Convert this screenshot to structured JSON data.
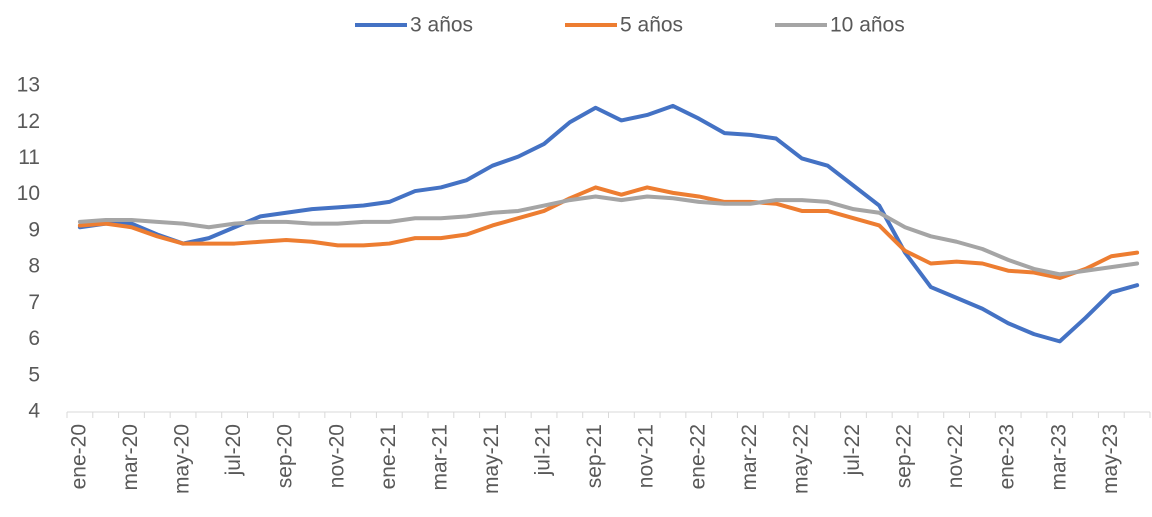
{
  "chart_data": {
    "type": "line",
    "categories": [
      "ene-20",
      null,
      "mar-20",
      null,
      "may-20",
      null,
      "jul-20",
      null,
      "sep-20",
      null,
      "nov-20",
      null,
      "ene-21",
      null,
      "mar-21",
      null,
      "may-21",
      null,
      "jul-21",
      null,
      "sep-21",
      null,
      "nov-21",
      null,
      "ene-22",
      null,
      "mar-22",
      null,
      "may-22",
      null,
      "jul-22",
      null,
      "sep-22",
      null,
      "nov-22",
      null,
      "ene-23",
      null,
      "mar-23",
      null,
      "may-23",
      null
    ],
    "series": [
      {
        "name": "3 años",
        "color": "#4472c4",
        "values": [
          9.1,
          9.2,
          9.2,
          8.9,
          8.65,
          8.8,
          9.1,
          9.4,
          9.5,
          9.6,
          9.65,
          9.7,
          9.8,
          10.1,
          10.2,
          10.4,
          10.8,
          11.05,
          11.4,
          12.0,
          12.4,
          12.05,
          12.2,
          12.45,
          12.1,
          11.7,
          11.65,
          11.55,
          11.0,
          10.8,
          10.25,
          9.7,
          8.4,
          7.45,
          7.15,
          6.85,
          6.45,
          6.15,
          5.95,
          6.6,
          7.3,
          7.5
        ]
      },
      {
        "name": "5 años",
        "color": "#ed7d31",
        "values": [
          9.15,
          9.2,
          9.1,
          8.85,
          8.65,
          8.65,
          8.65,
          8.7,
          8.75,
          8.7,
          8.6,
          8.6,
          8.65,
          8.8,
          8.8,
          8.9,
          9.15,
          9.35,
          9.55,
          9.9,
          10.2,
          10.0,
          10.2,
          10.05,
          9.95,
          9.8,
          9.8,
          9.75,
          9.55,
          9.55,
          9.35,
          9.15,
          8.45,
          8.1,
          8.15,
          8.1,
          7.9,
          7.85,
          7.7,
          7.95,
          8.3,
          8.4
        ]
      },
      {
        "name": "10 años",
        "color": "#a5a5a5",
        "values": [
          9.25,
          9.3,
          9.3,
          9.25,
          9.2,
          9.1,
          9.2,
          9.25,
          9.25,
          9.2,
          9.2,
          9.25,
          9.25,
          9.35,
          9.35,
          9.4,
          9.5,
          9.55,
          9.7,
          9.85,
          9.95,
          9.85,
          9.95,
          9.9,
          9.8,
          9.75,
          9.75,
          9.85,
          9.85,
          9.8,
          9.6,
          9.5,
          9.1,
          8.85,
          8.7,
          8.5,
          8.2,
          7.95,
          7.8,
          7.9,
          8.0,
          8.1
        ]
      }
    ],
    "ylim": [
      4,
      13
    ],
    "yticks": [
      4,
      5,
      6,
      7,
      8,
      9,
      10,
      11,
      12,
      13
    ],
    "grid": false,
    "legend": "top"
  }
}
